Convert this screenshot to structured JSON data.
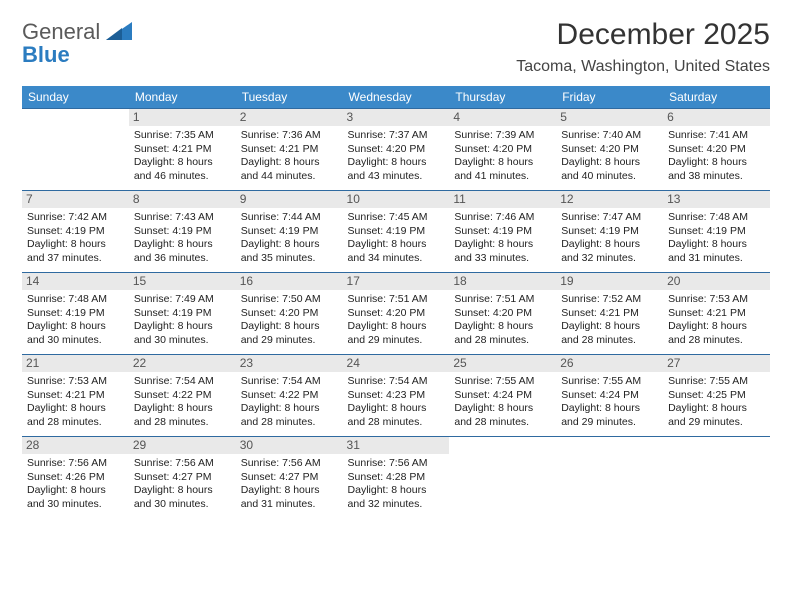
{
  "logo": {
    "word1": "General",
    "word2": "Blue"
  },
  "title": "December 2025",
  "subtitle": "Tacoma, Washington, United States",
  "headers": [
    "Sunday",
    "Monday",
    "Tuesday",
    "Wednesday",
    "Thursday",
    "Friday",
    "Saturday"
  ],
  "colors": {
    "header_bg": "#3b89c9",
    "header_text": "#ffffff",
    "row_border": "#2f6aa0",
    "daynum_bg": "#e9e9e9",
    "logo_gray": "#5a5a5a",
    "logo_blue": "#2b7cc0"
  },
  "weeks": [
    [
      {
        "num": "",
        "lines": []
      },
      {
        "num": "1",
        "lines": [
          "Sunrise: 7:35 AM",
          "Sunset: 4:21 PM",
          "Daylight: 8 hours",
          "and 46 minutes."
        ]
      },
      {
        "num": "2",
        "lines": [
          "Sunrise: 7:36 AM",
          "Sunset: 4:21 PM",
          "Daylight: 8 hours",
          "and 44 minutes."
        ]
      },
      {
        "num": "3",
        "lines": [
          "Sunrise: 7:37 AM",
          "Sunset: 4:20 PM",
          "Daylight: 8 hours",
          "and 43 minutes."
        ]
      },
      {
        "num": "4",
        "lines": [
          "Sunrise: 7:39 AM",
          "Sunset: 4:20 PM",
          "Daylight: 8 hours",
          "and 41 minutes."
        ]
      },
      {
        "num": "5",
        "lines": [
          "Sunrise: 7:40 AM",
          "Sunset: 4:20 PM",
          "Daylight: 8 hours",
          "and 40 minutes."
        ]
      },
      {
        "num": "6",
        "lines": [
          "Sunrise: 7:41 AM",
          "Sunset: 4:20 PM",
          "Daylight: 8 hours",
          "and 38 minutes."
        ]
      }
    ],
    [
      {
        "num": "7",
        "lines": [
          "Sunrise: 7:42 AM",
          "Sunset: 4:19 PM",
          "Daylight: 8 hours",
          "and 37 minutes."
        ]
      },
      {
        "num": "8",
        "lines": [
          "Sunrise: 7:43 AM",
          "Sunset: 4:19 PM",
          "Daylight: 8 hours",
          "and 36 minutes."
        ]
      },
      {
        "num": "9",
        "lines": [
          "Sunrise: 7:44 AM",
          "Sunset: 4:19 PM",
          "Daylight: 8 hours",
          "and 35 minutes."
        ]
      },
      {
        "num": "10",
        "lines": [
          "Sunrise: 7:45 AM",
          "Sunset: 4:19 PM",
          "Daylight: 8 hours",
          "and 34 minutes."
        ]
      },
      {
        "num": "11",
        "lines": [
          "Sunrise: 7:46 AM",
          "Sunset: 4:19 PM",
          "Daylight: 8 hours",
          "and 33 minutes."
        ]
      },
      {
        "num": "12",
        "lines": [
          "Sunrise: 7:47 AM",
          "Sunset: 4:19 PM",
          "Daylight: 8 hours",
          "and 32 minutes."
        ]
      },
      {
        "num": "13",
        "lines": [
          "Sunrise: 7:48 AM",
          "Sunset: 4:19 PM",
          "Daylight: 8 hours",
          "and 31 minutes."
        ]
      }
    ],
    [
      {
        "num": "14",
        "lines": [
          "Sunrise: 7:48 AM",
          "Sunset: 4:19 PM",
          "Daylight: 8 hours",
          "and 30 minutes."
        ]
      },
      {
        "num": "15",
        "lines": [
          "Sunrise: 7:49 AM",
          "Sunset: 4:19 PM",
          "Daylight: 8 hours",
          "and 30 minutes."
        ]
      },
      {
        "num": "16",
        "lines": [
          "Sunrise: 7:50 AM",
          "Sunset: 4:20 PM",
          "Daylight: 8 hours",
          "and 29 minutes."
        ]
      },
      {
        "num": "17",
        "lines": [
          "Sunrise: 7:51 AM",
          "Sunset: 4:20 PM",
          "Daylight: 8 hours",
          "and 29 minutes."
        ]
      },
      {
        "num": "18",
        "lines": [
          "Sunrise: 7:51 AM",
          "Sunset: 4:20 PM",
          "Daylight: 8 hours",
          "and 28 minutes."
        ]
      },
      {
        "num": "19",
        "lines": [
          "Sunrise: 7:52 AM",
          "Sunset: 4:21 PM",
          "Daylight: 8 hours",
          "and 28 minutes."
        ]
      },
      {
        "num": "20",
        "lines": [
          "Sunrise: 7:53 AM",
          "Sunset: 4:21 PM",
          "Daylight: 8 hours",
          "and 28 minutes."
        ]
      }
    ],
    [
      {
        "num": "21",
        "lines": [
          "Sunrise: 7:53 AM",
          "Sunset: 4:21 PM",
          "Daylight: 8 hours",
          "and 28 minutes."
        ]
      },
      {
        "num": "22",
        "lines": [
          "Sunrise: 7:54 AM",
          "Sunset: 4:22 PM",
          "Daylight: 8 hours",
          "and 28 minutes."
        ]
      },
      {
        "num": "23",
        "lines": [
          "Sunrise: 7:54 AM",
          "Sunset: 4:22 PM",
          "Daylight: 8 hours",
          "and 28 minutes."
        ]
      },
      {
        "num": "24",
        "lines": [
          "Sunrise: 7:54 AM",
          "Sunset: 4:23 PM",
          "Daylight: 8 hours",
          "and 28 minutes."
        ]
      },
      {
        "num": "25",
        "lines": [
          "Sunrise: 7:55 AM",
          "Sunset: 4:24 PM",
          "Daylight: 8 hours",
          "and 28 minutes."
        ]
      },
      {
        "num": "26",
        "lines": [
          "Sunrise: 7:55 AM",
          "Sunset: 4:24 PM",
          "Daylight: 8 hours",
          "and 29 minutes."
        ]
      },
      {
        "num": "27",
        "lines": [
          "Sunrise: 7:55 AM",
          "Sunset: 4:25 PM",
          "Daylight: 8 hours",
          "and 29 minutes."
        ]
      }
    ],
    [
      {
        "num": "28",
        "lines": [
          "Sunrise: 7:56 AM",
          "Sunset: 4:26 PM",
          "Daylight: 8 hours",
          "and 30 minutes."
        ]
      },
      {
        "num": "29",
        "lines": [
          "Sunrise: 7:56 AM",
          "Sunset: 4:27 PM",
          "Daylight: 8 hours",
          "and 30 minutes."
        ]
      },
      {
        "num": "30",
        "lines": [
          "Sunrise: 7:56 AM",
          "Sunset: 4:27 PM",
          "Daylight: 8 hours",
          "and 31 minutes."
        ]
      },
      {
        "num": "31",
        "lines": [
          "Sunrise: 7:56 AM",
          "Sunset: 4:28 PM",
          "Daylight: 8 hours",
          "and 32 minutes."
        ]
      },
      {
        "num": "",
        "lines": []
      },
      {
        "num": "",
        "lines": []
      },
      {
        "num": "",
        "lines": []
      }
    ]
  ]
}
